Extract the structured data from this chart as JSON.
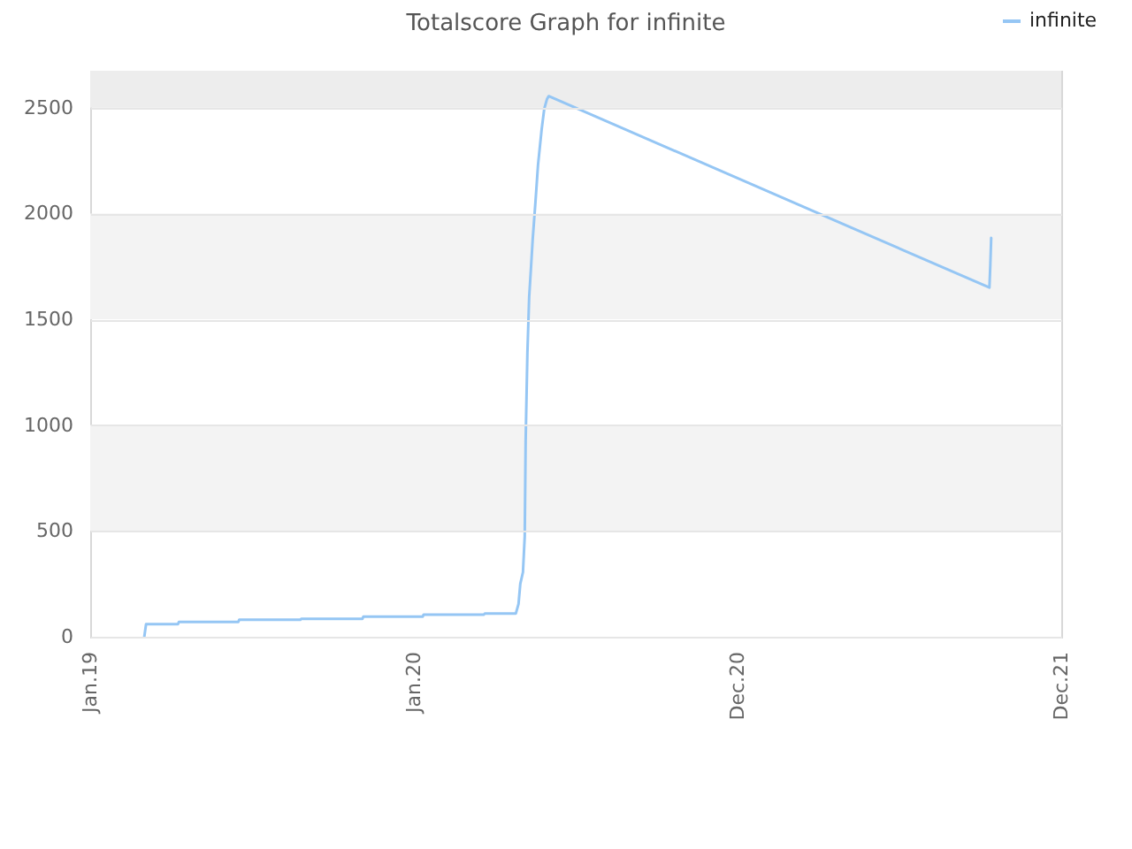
{
  "chart_data": {
    "type": "line",
    "title": "Totalscore Graph for infinite",
    "series": [
      {
        "name": "infinite",
        "color": "#95c6f4",
        "x": [
          "2019-03-03",
          "2019-03-05",
          "2019-04-10",
          "2019-04-11",
          "2019-06-17",
          "2019-06-18",
          "2019-08-26",
          "2019-08-27",
          "2019-11-04",
          "2019-11-05",
          "2020-01-11",
          "2020-01-12",
          "2020-03-20",
          "2020-03-21",
          "2020-04-25",
          "2020-04-28",
          "2020-04-30",
          "2020-05-03",
          "2020-05-05",
          "2020-05-06",
          "2020-05-08",
          "2020-05-10",
          "2020-05-12",
          "2020-05-14",
          "2020-05-17",
          "2020-05-20",
          "2020-05-24",
          "2020-05-27",
          "2020-05-30",
          "2020-06-01",
          "2021-10-11",
          "2021-10-12",
          "2021-10-13"
        ],
        "values": [
          0,
          60,
          60,
          70,
          70,
          80,
          80,
          85,
          85,
          95,
          95,
          105,
          105,
          110,
          110,
          155,
          250,
          305,
          475,
          920,
          1340,
          1605,
          1740,
          1880,
          2050,
          2230,
          2395,
          2495,
          2540,
          2555,
          1650,
          1755,
          1885
        ]
      }
    ],
    "xlim": [
      "2019-01-01",
      "2021-12-31"
    ],
    "xticks": [
      {
        "value": "2019-01-01",
        "label": "Jan.19"
      },
      {
        "value": "2020-01-01",
        "label": "Jan.20"
      },
      {
        "value": "2020-12-31",
        "label": "Dec.20"
      },
      {
        "value": "2021-12-31",
        "label": "Dec.21"
      }
    ],
    "ylim": [
      0,
      2675
    ],
    "yticks": [
      0,
      500,
      1000,
      1500,
      2000,
      2500
    ],
    "grid": "y",
    "legend": "top right",
    "bands": [
      {
        "axis": "y",
        "from": 500,
        "to": 1000,
        "color": "#f3f3f3"
      },
      {
        "axis": "y",
        "from": 1500,
        "to": 2000,
        "color": "#f3f3f3"
      },
      {
        "axis": "y",
        "from": 2500,
        "to": 2675,
        "color": "#ededed"
      }
    ]
  }
}
